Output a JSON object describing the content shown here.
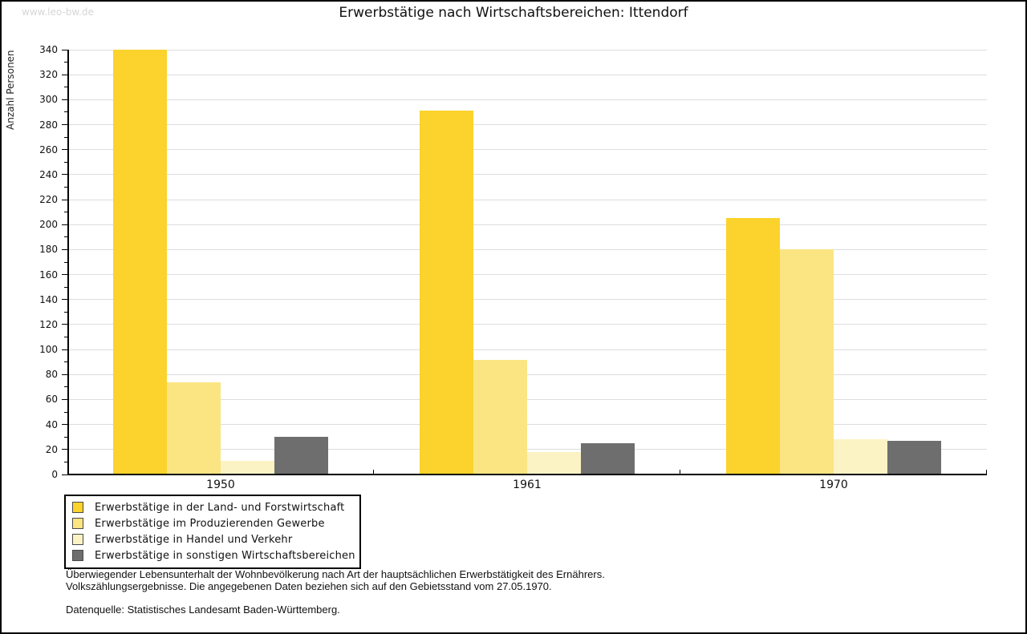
{
  "watermark": "www.leo-bw.de",
  "title": "Erwerbstätige nach Wirtschaftsbereichen: Ittendorf",
  "chart_data": {
    "type": "bar",
    "title": "Erwerbstätige nach Wirtschaftsbereichen: Ittendorf",
    "xlabel": "",
    "ylabel": "Anzahl Personen",
    "ylim": [
      0,
      340
    ],
    "ytick_major_step": 20,
    "ytick_minor_step": 10,
    "grid": "horizontal-major",
    "legend_position": "bottom-left",
    "categories": [
      "1950",
      "1961",
      "1970"
    ],
    "series": [
      {
        "name": "Erwerbstätige in der Land- und Forstwirtschaft",
        "color": "#FBD32C",
        "values": [
          340,
          291,
          205
        ]
      },
      {
        "name": "Erwerbstätige im Produzierenden Gewerbe",
        "color": "#FBE583",
        "values": [
          74,
          92,
          180
        ]
      },
      {
        "name": "Erwerbstätige in Handel und Verkehr",
        "color": "#FCF3C5",
        "values": [
          11,
          18,
          28
        ]
      },
      {
        "name": "Erwerbstätige in sonstigen Wirtschaftsbereichen",
        "color": "#6E6E6E",
        "values": [
          30,
          25,
          27
        ]
      }
    ],
    "colors": {
      "gridline": "#dddddd",
      "axis": "#000000"
    }
  },
  "footer": {
    "line1": "Überwiegender Lebensunterhalt der Wohnbevölkerung nach Art der hauptsächlichen Erwerbstätigkeit des Ernährers.",
    "line2": "Volkszählungsergebnisse. Die angegebenen Daten beziehen sich auf den Gebietsstand vom 27.05.1970.",
    "source": "Datenquelle: Statistisches Landesamt Baden-Württemberg."
  }
}
